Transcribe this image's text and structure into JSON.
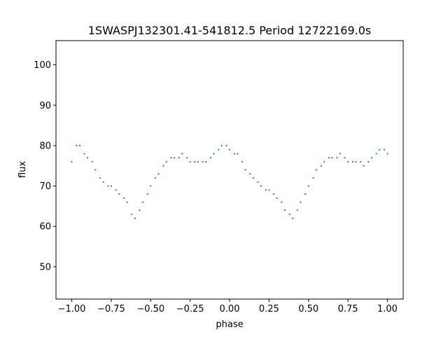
{
  "chart_data": {
    "type": "scatter",
    "title": "1SWASPJ132301.41-541812.5 Period 12722169.0s",
    "xlabel": "phase",
    "ylabel": "flux",
    "xlim": [
      -1.1,
      1.1
    ],
    "ylim": [
      42,
      106
    ],
    "x_ticks": [
      -1.0,
      -0.75,
      -0.5,
      -0.25,
      0.0,
      0.25,
      0.5,
      0.75,
      1.0
    ],
    "x_tick_labels": [
      "−1.00",
      "−0.75",
      "−0.50",
      "−0.25",
      "0.00",
      "0.25",
      "0.50",
      "0.75",
      "1.00"
    ],
    "y_ticks": [
      50,
      60,
      70,
      80,
      90,
      100
    ],
    "y_tick_labels": [
      "50",
      "60",
      "70",
      "80",
      "90",
      "100"
    ],
    "grid": false,
    "legend": "none",
    "marker_color": "#1f77b4",
    "series": [
      {
        "x": [
          -1.0,
          -0.97,
          -0.95,
          -0.92,
          -0.9,
          -0.87,
          -0.85,
          -0.82,
          -0.8,
          -0.77,
          -0.75,
          -0.72,
          -0.7,
          -0.67,
          -0.65,
          -0.62,
          -0.6,
          -0.57,
          -0.55,
          -0.52,
          -0.5,
          -0.47,
          -0.45,
          -0.42,
          -0.4,
          -0.37,
          -0.35,
          -0.32,
          -0.3,
          -0.27,
          -0.25,
          -0.22,
          -0.2,
          -0.17,
          -0.15,
          -0.12,
          -0.1,
          -0.07,
          -0.05,
          -0.02,
          0.0,
          0.03,
          0.05,
          0.08,
          0.1,
          0.13,
          0.15,
          0.18,
          0.2,
          0.23,
          0.25,
          0.28,
          0.3,
          0.33,
          0.35,
          0.38,
          0.4,
          0.43,
          0.45,
          0.48,
          0.5,
          0.53,
          0.55,
          0.58,
          0.6,
          0.63,
          0.65,
          0.68,
          0.7,
          0.73,
          0.75,
          0.78,
          0.8,
          0.83,
          0.85,
          0.88,
          0.9,
          0.93,
          0.95,
          0.98,
          1.0
        ],
        "y": [
          76,
          80,
          80,
          78,
          77,
          76,
          74,
          72,
          71,
          70,
          70,
          69,
          68,
          67,
          66,
          63,
          62,
          64,
          66,
          68,
          70,
          72,
          73,
          75,
          76,
          77,
          77,
          77,
          78,
          77,
          76,
          76,
          76,
          76,
          76,
          77,
          78,
          79,
          80,
          80,
          79,
          78,
          78,
          76,
          74,
          73,
          72,
          71,
          70,
          69,
          69,
          68,
          67,
          66,
          64,
          63,
          62,
          64,
          66,
          68,
          70,
          72,
          74,
          75,
          76,
          77,
          77,
          77,
          78,
          77,
          76,
          76,
          76,
          76,
          75,
          76,
          77,
          78,
          79,
          79,
          78
        ]
      }
    ]
  }
}
